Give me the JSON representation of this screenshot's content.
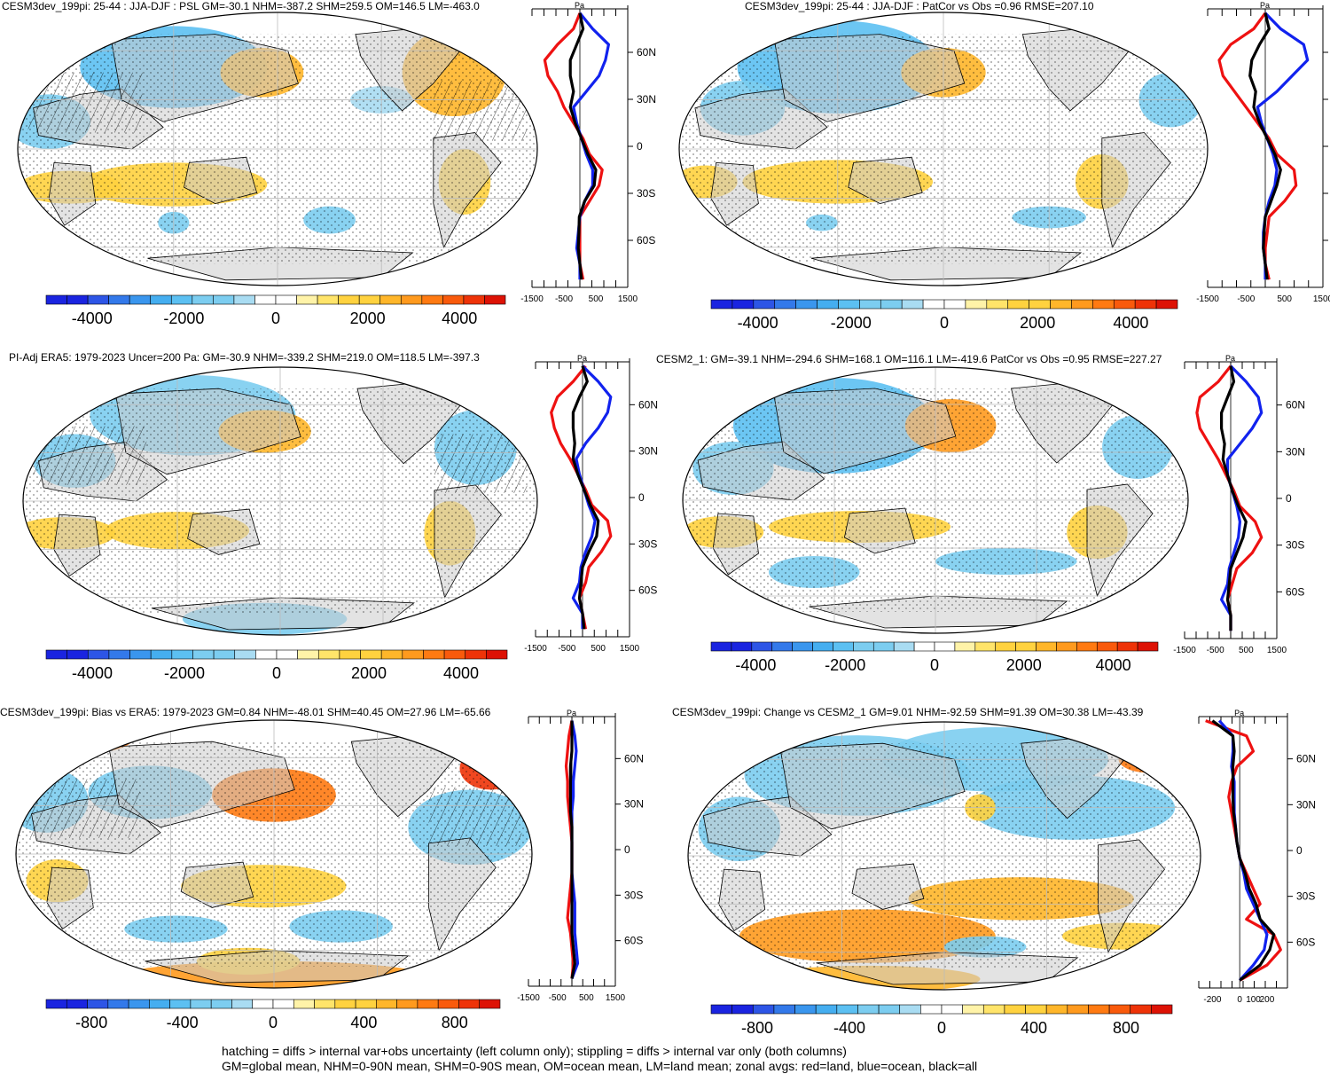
{
  "footer": {
    "line1": "hatching = diffs > internal var+obs uncertainty (left column only); stippling = diffs > internal var only (both columns)",
    "line2": "GM=global mean, NHM=0-90N mean, SHM=0-90S mean, OM=ocean mean, LM=land mean; zonal avgs: red=land, blue=ocean, black=all"
  },
  "colors": {
    "land": "#cccccc",
    "zonal_land": "#ee1111",
    "zonal_ocean": "#1122ee",
    "zonal_all": "#000000",
    "palette": [
      "#1a24e0",
      "#2d55e6",
      "#3379ea",
      "#3a96ee",
      "#45aef0",
      "#5cc0f2",
      "#7ccdf0",
      "#a9dcf2",
      "#ffffff",
      "#ffffff",
      "#fff3a8",
      "#ffe46a",
      "#ffd23f",
      "#ffb62a",
      "#ff9a1e",
      "#ff7a12",
      "#f95a0c",
      "#ee3308",
      "#dd1205"
    ]
  },
  "panels": [
    {
      "id": "model",
      "title": "CESM3dev_199pi: 25-44 : JJA-DJF : PSL GM=-30.1 NHM=-387.2 SHM=259.5 OM=146.5 LM=-463.0",
      "unit": "Pa",
      "lat_labels": [
        "60N",
        "30N",
        "0",
        "30S",
        "60S"
      ],
      "zonal_ticks": [
        "-1500",
        "-500",
        "500",
        "1500"
      ],
      "colorbar_ticks": [
        "-4000",
        "-2000",
        "0",
        "2000",
        "4000"
      ],
      "chart_data": {
        "type": "map+zonal-mean",
        "variable": "PSL",
        "season": "JJA-DJF",
        "years": "25-44",
        "stats": {
          "GM": -30.1,
          "NHM": -387.2,
          "SHM": 259.5,
          "OM": 146.5,
          "LM": -463.0
        },
        "colorbar_range": [
          -5000,
          5000
        ],
        "zonal_xlim": [
          -1500,
          1500
        ],
        "zonal_lat": [
          85,
          75,
          65,
          55,
          45,
          35,
          25,
          15,
          5,
          -5,
          -15,
          -25,
          -35,
          -45,
          -55,
          -65,
          -75,
          -85
        ],
        "series": [
          {
            "name": "land",
            "values": [
              0,
              -200,
              -700,
              -1100,
              -1000,
              -700,
              -500,
              -200,
              100,
              300,
              700,
              600,
              300,
              0,
              0,
              0,
              0,
              100
            ]
          },
          {
            "name": "ocean",
            "values": [
              0,
              400,
              900,
              800,
              600,
              200,
              -200,
              -100,
              50,
              200,
              400,
              400,
              150,
              0,
              -50,
              -100,
              0,
              0
            ]
          },
          {
            "name": "all",
            "values": [
              0,
              100,
              -100,
              -300,
              -300,
              -200,
              -300,
              -150,
              50,
              250,
              500,
              450,
              150,
              -20,
              -30,
              -50,
              0,
              50
            ]
          }
        ]
      }
    },
    {
      "id": "model-pattern",
      "title": "CESM3dev_199pi: 25-44 : JJA-DJF : PatCor vs Obs =0.96 RMSE=207.10",
      "unit": "Pa",
      "lat_labels": [
        "60N",
        "30N",
        "0",
        "30S",
        "60S"
      ],
      "zonal_ticks": [
        "-1500",
        "-500",
        "500",
        "1500"
      ],
      "colorbar_ticks": [
        "-4000",
        "-2000",
        "0",
        "2000",
        "4000"
      ],
      "chart_data": {
        "type": "map+zonal-mean",
        "stats": {
          "PatCor": 0.96,
          "RMSE": 207.1
        },
        "colorbar_range": [
          -5000,
          5000
        ],
        "zonal_xlim": [
          -1500,
          1500
        ],
        "zonal_lat": [
          85,
          75,
          65,
          55,
          45,
          35,
          25,
          15,
          5,
          -5,
          -15,
          -25,
          -35,
          -45,
          -55,
          -65,
          -75,
          -85
        ],
        "series": [
          {
            "name": "land",
            "values": [
              0,
              -300,
              -900,
              -1200,
              -1100,
              -800,
              -500,
              -200,
              100,
              300,
              750,
              800,
              500,
              100,
              50,
              0,
              0,
              100
            ]
          },
          {
            "name": "ocean",
            "values": [
              0,
              400,
              1000,
              1100,
              700,
              300,
              -200,
              -100,
              50,
              200,
              300,
              250,
              100,
              0,
              -50,
              -50,
              0,
              0
            ]
          },
          {
            "name": "all",
            "values": [
              0,
              100,
              -150,
              -350,
              -400,
              -250,
              -300,
              -150,
              50,
              250,
              400,
              300,
              150,
              0,
              -30,
              -50,
              0,
              50
            ]
          }
        ]
      }
    },
    {
      "id": "obs",
      "title": "PI-Adj ERA5: 1979-2023 Uncer=200 Pa: GM=-30.9 NHM=-339.2 SHM=219.0 OM=118.5 LM=-397.3",
      "unit": "Pa",
      "lat_labels": [
        "60N",
        "30N",
        "0",
        "30S",
        "60S"
      ],
      "zonal_ticks": [
        "-1500",
        "-500",
        "500",
        "1500"
      ],
      "colorbar_ticks": [
        "-4000",
        "-2000",
        "0",
        "2000",
        "4000"
      ],
      "chart_data": {
        "type": "map+zonal-mean",
        "stats": {
          "GM": -30.9,
          "NHM": -339.2,
          "SHM": 219.0,
          "OM": 118.5,
          "LM": -397.3,
          "Uncer": 200
        },
        "colorbar_range": [
          -5000,
          5000
        ],
        "zonal_xlim": [
          -1500,
          1500
        ],
        "zonal_lat": [
          85,
          75,
          65,
          55,
          45,
          35,
          25,
          15,
          5,
          -5,
          -15,
          -25,
          -35,
          -45,
          -55,
          -65,
          -75,
          -85
        ],
        "series": [
          {
            "name": "land",
            "values": [
              100,
              -300,
              -800,
              -1000,
              -900,
              -700,
              -400,
              -150,
              100,
              300,
              800,
              900,
              600,
              200,
              100,
              -100,
              0,
              100
            ]
          },
          {
            "name": "ocean",
            "values": [
              0,
              500,
              900,
              800,
              500,
              100,
              -200,
              -100,
              50,
              200,
              400,
              300,
              100,
              -50,
              -100,
              -300,
              0,
              0
            ]
          },
          {
            "name": "all",
            "values": [
              0,
              150,
              -100,
              -300,
              -300,
              -250,
              -300,
              -150,
              50,
              250,
              500,
              450,
              200,
              0,
              -50,
              -100,
              0,
              50
            ]
          }
        ]
      }
    },
    {
      "id": "cesm2",
      "title": "CESM2_1: GM=-39.1 NHM=-294.6 SHM=168.1 OM=116.1 LM=-419.6 PatCor vs Obs =0.95 RMSE=227.27",
      "unit": "Pa",
      "lat_labels": [
        "60N",
        "30N",
        "0",
        "30S",
        "60S"
      ],
      "zonal_ticks": [
        "-1500",
        "-500",
        "500",
        "1500"
      ],
      "colorbar_ticks": [
        "-4000",
        "-2000",
        "0",
        "2000",
        "4000"
      ],
      "chart_data": {
        "type": "map+zonal-mean",
        "stats": {
          "GM": -39.1,
          "NHM": -294.6,
          "SHM": 168.1,
          "OM": 116.1,
          "LM": -419.6,
          "PatCor": 0.95,
          "RMSE": 227.27
        },
        "colorbar_range": [
          -5000,
          5000
        ],
        "zonal_xlim": [
          -1500,
          1500
        ],
        "zonal_lat": [
          85,
          75,
          65,
          55,
          45,
          35,
          25,
          15,
          5,
          -5,
          -15,
          -25,
          -35,
          -45,
          -55,
          -65,
          -75,
          -85
        ],
        "series": [
          {
            "name": "land",
            "values": [
              0,
              -400,
              -1000,
              -1100,
              -1000,
              -700,
              -400,
              -150,
              100,
              300,
              800,
              1000,
              700,
              200,
              50,
              -100,
              0,
              0
            ]
          },
          {
            "name": "ocean",
            "values": [
              0,
              500,
              900,
              1000,
              700,
              300,
              -100,
              -100,
              50,
              200,
              300,
              250,
              100,
              -50,
              -100,
              -300,
              0,
              0
            ]
          },
          {
            "name": "all",
            "values": [
              0,
              100,
              -100,
              -300,
              -300,
              -200,
              -250,
              -100,
              50,
              250,
              500,
              400,
              200,
              0,
              -50,
              -100,
              0,
              0
            ]
          }
        ]
      }
    },
    {
      "id": "bias",
      "title": "CESM3dev_199pi: Bias vs ERA5: 1979-2023 GM=0.84 NHM=-48.01 SHM=40.45 OM=27.96 LM=-65.66",
      "unit": "Pa",
      "lat_labels": [
        "60N",
        "30N",
        "0",
        "30S",
        "60S"
      ],
      "zonal_ticks": [
        "-1500",
        "-500",
        "500",
        "1500"
      ],
      "colorbar_ticks": [
        "-800",
        "-400",
        "0",
        "400",
        "800"
      ],
      "chart_data": {
        "type": "map+zonal-mean",
        "stats": {
          "GM": 0.84,
          "NHM": -48.01,
          "SHM": 40.45,
          "OM": 27.96,
          "LM": -65.66
        },
        "colorbar_range": [
          -1000,
          1000
        ],
        "zonal_xlim": [
          -1500,
          1500
        ],
        "zonal_lat": [
          85,
          75,
          65,
          55,
          45,
          35,
          25,
          15,
          5,
          -5,
          -15,
          -25,
          -35,
          -45,
          -55,
          -65,
          -75,
          -85
        ],
        "series": [
          {
            "name": "land",
            "values": [
              0,
              -100,
              -150,
              -200,
              -150,
              -150,
              -100,
              -50,
              0,
              0,
              0,
              -50,
              -100,
              -150,
              -50,
              0,
              50,
              0
            ]
          },
          {
            "name": "ocean",
            "values": [
              0,
              100,
              150,
              100,
              50,
              50,
              0,
              0,
              0,
              0,
              0,
              50,
              100,
              100,
              100,
              150,
              200,
              0
            ]
          },
          {
            "name": "all",
            "values": [
              0,
              0,
              0,
              -50,
              -50,
              -50,
              -50,
              0,
              0,
              0,
              0,
              0,
              0,
              0,
              0,
              50,
              100,
              0
            ]
          }
        ]
      }
    },
    {
      "id": "change",
      "title": "CESM3dev_199pi: Change vs CESM2_1 GM=9.01 NHM=-92.59 SHM=91.39 OM=30.38 LM=-43.39",
      "unit": "Pa",
      "lat_labels": [
        "60N",
        "30N",
        "0",
        "30S",
        "60S"
      ],
      "zonal_ticks": [
        "-200",
        "0",
        "100",
        "200"
      ],
      "colorbar_ticks": [
        "-800",
        "-400",
        "0",
        "400",
        "800"
      ],
      "chart_data": {
        "type": "map+zonal-mean",
        "stats": {
          "GM": 9.01,
          "NHM": -92.59,
          "SHM": 91.39,
          "OM": 30.38,
          "LM": -43.39
        },
        "colorbar_range": [
          -1000,
          1000
        ],
        "zonal_xlim": [
          -300,
          350
        ],
        "zonal_lat": [
          85,
          75,
          65,
          55,
          45,
          35,
          25,
          15,
          5,
          -5,
          -15,
          -25,
          -35,
          -45,
          -55,
          -65,
          -75,
          -85
        ],
        "series": [
          {
            "name": "land",
            "values": [
              -250,
              50,
              100,
              -20,
              -60,
              -80,
              -60,
              -40,
              -20,
              0,
              50,
              100,
              150,
              50,
              250,
              300,
              200,
              0
            ]
          },
          {
            "name": "ocean",
            "values": [
              -150,
              -50,
              -50,
              -60,
              -40,
              -40,
              -40,
              -30,
              -20,
              0,
              30,
              50,
              100,
              150,
              200,
              180,
              100,
              0
            ]
          },
          {
            "name": "all",
            "values": [
              -200,
              -50,
              -40,
              -50,
              -50,
              -50,
              -45,
              -30,
              -20,
              0,
              40,
              70,
              120,
              150,
              250,
              220,
              150,
              0
            ]
          }
        ]
      }
    }
  ]
}
